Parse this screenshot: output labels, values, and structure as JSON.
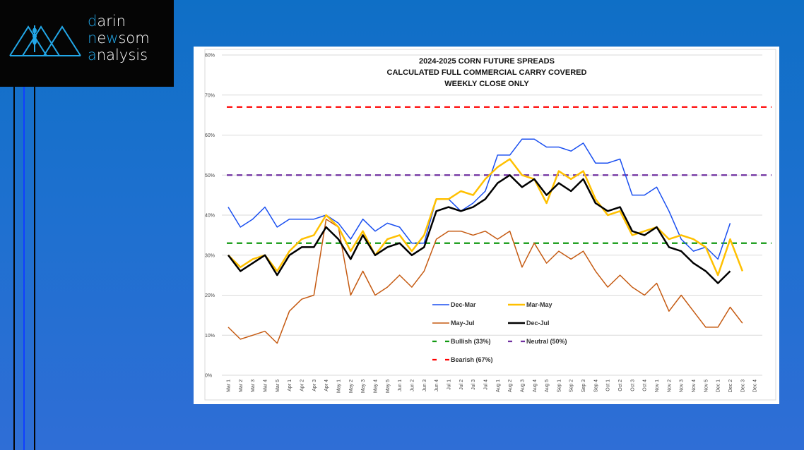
{
  "logo": {
    "lines": [
      {
        "accent": "d",
        "rest": "arin"
      },
      {
        "pre": "n",
        "mid_plain": "e",
        "accent_mid": "w",
        "rest": "som"
      },
      {
        "accent": "a",
        "rest": "nalysis"
      }
    ],
    "line1_accent": "d",
    "line1_rest": "arin",
    "line2_a": "n",
    "line2_b": "e",
    "line2_c": "w",
    "line2_d": "som",
    "line3_accent": "a",
    "line3_rest": "nalysis"
  },
  "colors": {
    "dec_mar": "#1a4ff0",
    "mar_may": "#ffc000",
    "may_jul": "#c55a11",
    "dec_jul": "#000000",
    "bullish": "#119911",
    "neutral": "#7030a0",
    "bearish": "#ff0000",
    "logo_accent": "#22a7e8"
  },
  "chart_data": {
    "type": "line",
    "title": [
      "2024-2025 CORN FUTURE SPREADS",
      "CALCULATED FULL COMMERCIAL CARRY COVERED",
      "WEEKLY CLOSE ONLY"
    ],
    "xlabel": "",
    "ylabel": "",
    "ylim": [
      0,
      80
    ],
    "y_ticks": [
      0,
      10,
      20,
      30,
      40,
      50,
      60,
      70,
      80
    ],
    "y_tick_labels": [
      "0%",
      "10%",
      "20%",
      "30%",
      "40%",
      "50%",
      "60%",
      "70%",
      "80%"
    ],
    "grid": true,
    "legend_position": "bottom-center-inside",
    "categories": [
      "Mar 1",
      "Mar 2",
      "Mar 3",
      "Mar 4",
      "Mar 5",
      "Apr 1",
      "Apr 2",
      "Apr 3",
      "Apr 4",
      "May 1",
      "May 2",
      "May 3",
      "May 4",
      "May 5",
      "Jun 1",
      "Jun 2",
      "Jun 3",
      "Jun 4",
      "Jul 1",
      "Jul 2",
      "Jul 3",
      "Jul 4",
      "Aug 1",
      "Aug 2",
      "Aug 3",
      "Aug 4",
      "Aug 5",
      "Sep 1",
      "Sep 2",
      "Sep 3",
      "Sep 4",
      "Oct 1",
      "Oct 2",
      "Oct 3",
      "Oct 4",
      "Nov 1",
      "Nov 2",
      "Nov 3",
      "Nov 4",
      "Nov 5",
      "Dec 1",
      "Dec 2",
      "Dec 3",
      "Dec 4"
    ],
    "series": [
      {
        "name": "Dec-Mar",
        "key": "dec_mar",
        "values": [
          42,
          37,
          39,
          42,
          37,
          39,
          39,
          39,
          40,
          38,
          34,
          39,
          36,
          38,
          37,
          33,
          33,
          44,
          44,
          41,
          43,
          46,
          55,
          55,
          59,
          59,
          57,
          57,
          56,
          58,
          53,
          53,
          54,
          45,
          45,
          47,
          41,
          34,
          31,
          32,
          29,
          38,
          null,
          null
        ]
      },
      {
        "name": "Mar-May",
        "key": "mar_may",
        "values": [
          30,
          27,
          29,
          30,
          26,
          31,
          34,
          35,
          40,
          37,
          31,
          36,
          30,
          34,
          35,
          31,
          35,
          44,
          44,
          46,
          45,
          49,
          52,
          54,
          50,
          49,
          43,
          51,
          49,
          51,
          44,
          40,
          41,
          35,
          36,
          37,
          34,
          35,
          34,
          32,
          25,
          34,
          26,
          null
        ]
      },
      {
        "name": "May-Jul",
        "key": "may_jul",
        "values": [
          12,
          9,
          10,
          11,
          8,
          16,
          19,
          20,
          39,
          37,
          20,
          26,
          20,
          22,
          25,
          22,
          26,
          34,
          36,
          36,
          35,
          36,
          34,
          36,
          27,
          33,
          28,
          31,
          29,
          31,
          26,
          22,
          25,
          22,
          20,
          23,
          16,
          20,
          16,
          12,
          12,
          17,
          13,
          null
        ]
      },
      {
        "name": "Dec-Jul",
        "key": "dec_jul",
        "values": [
          30,
          26,
          28,
          30,
          25,
          30,
          32,
          32,
          37,
          34,
          29,
          35,
          30,
          32,
          33,
          30,
          32,
          41,
          42,
          41,
          42,
          44,
          48,
          50,
          47,
          49,
          45,
          48,
          46,
          49,
          43,
          41,
          42,
          36,
          35,
          37,
          32,
          31,
          28,
          26,
          23,
          26,
          null,
          null
        ]
      }
    ],
    "reference_lines": [
      {
        "name": "Bullish (33%)",
        "key": "bullish",
        "value": 33
      },
      {
        "name": "Neutral (50%)",
        "key": "neutral",
        "value": 50
      },
      {
        "name": "Bearish (67%)",
        "key": "bearish",
        "value": 67
      }
    ],
    "legend": [
      "Dec-Mar",
      "Mar-May",
      "May-Jul",
      "Dec-Jul",
      "Bullish (33%)",
      "Neutral (50%)",
      "Bearish (67%)"
    ]
  }
}
